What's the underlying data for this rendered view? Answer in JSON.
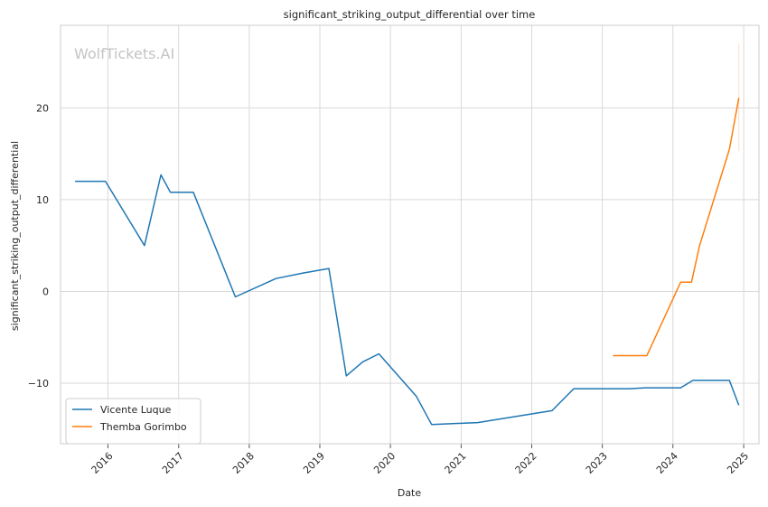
{
  "chart_data": {
    "type": "line",
    "title": "significant_striking_output_differential over time",
    "xlabel": "Date",
    "ylabel": "significant_striking_output_differential",
    "watermark": "WolfTickets.AI",
    "x_ticks": [
      "2016",
      "2017",
      "2018",
      "2019",
      "2020",
      "2021",
      "2022",
      "2023",
      "2024",
      "2025"
    ],
    "y_ticks": [
      -10,
      0,
      10,
      20
    ],
    "xlim": [
      "2015-05-01",
      "2025-03-21"
    ],
    "ylim": [
      -16.6,
      29.0
    ],
    "grid": true,
    "legend_position": "lower-left",
    "series": [
      {
        "name": "Vicente Luque",
        "color": "#1f77b4",
        "points": [
          [
            "2015-07-15",
            12.0
          ],
          [
            "2015-12-19",
            12.0
          ],
          [
            "2016-07-08",
            5.0
          ],
          [
            "2016-10-01",
            12.7
          ],
          [
            "2016-11-19",
            10.8
          ],
          [
            "2017-03-18",
            10.8
          ],
          [
            "2017-10-21",
            -0.6
          ],
          [
            "2018-05-19",
            1.4
          ],
          [
            "2018-10-06",
            2.0
          ],
          [
            "2019-02-17",
            2.5
          ],
          [
            "2019-05-18",
            -9.2
          ],
          [
            "2019-08-10",
            -7.7
          ],
          [
            "2019-11-02",
            -6.8
          ],
          [
            "2020-05-13",
            -11.4
          ],
          [
            "2020-08-01",
            -14.5
          ],
          [
            "2021-03-27",
            -14.3
          ],
          [
            "2022-04-16",
            -13.0
          ],
          [
            "2022-08-06",
            -10.6
          ],
          [
            "2023-05-20",
            -10.6
          ],
          [
            "2023-08-12",
            -10.5
          ],
          [
            "2024-02-10",
            -10.5
          ],
          [
            "2024-04-13",
            -9.7
          ],
          [
            "2024-10-19",
            -9.7
          ],
          [
            "2024-12-07",
            -12.4
          ]
        ]
      },
      {
        "name": "Themba Gorimbo",
        "color": "#ff7f0e",
        "points": [
          [
            "2023-02-25",
            -7.0
          ],
          [
            "2023-08-19",
            -7.0
          ],
          [
            "2024-02-10",
            1.0
          ],
          [
            "2024-04-06",
            1.0
          ],
          [
            "2024-05-18",
            5.0
          ],
          [
            "2024-10-19",
            15.5
          ],
          [
            "2024-12-07",
            21.1
          ]
        ],
        "error_band": {
          "x": "2024-12-07",
          "low": 15.3,
          "high": 27.0
        }
      }
    ]
  }
}
